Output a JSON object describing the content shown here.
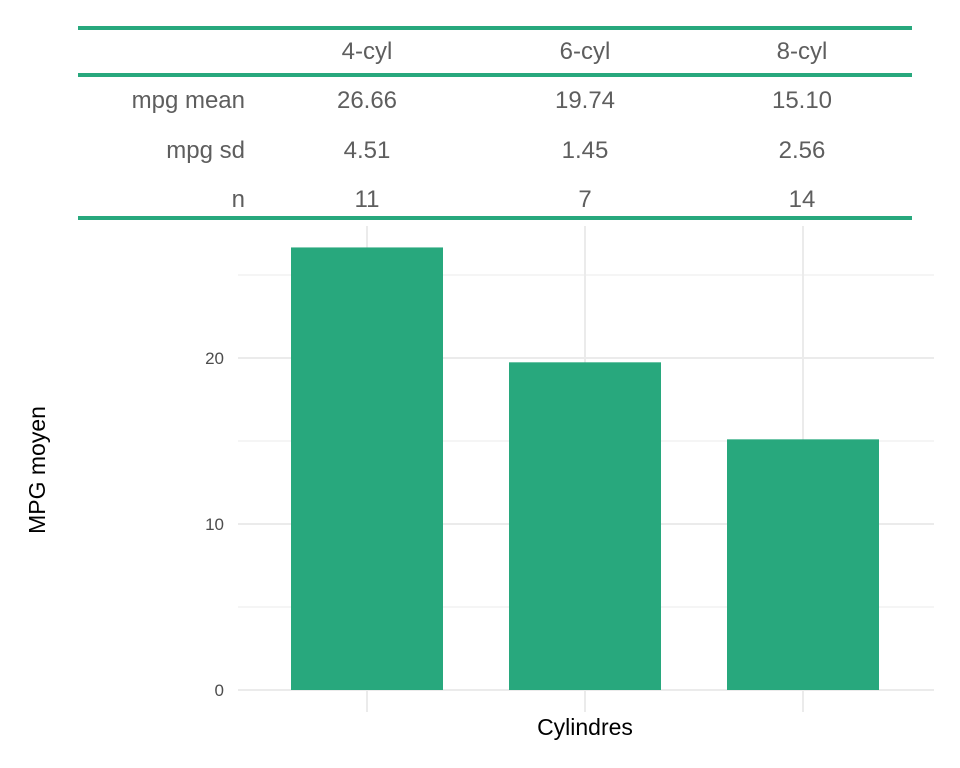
{
  "table": {
    "columns": [
      "4-cyl",
      "6-cyl",
      "8-cyl"
    ],
    "rows": [
      {
        "label": "mpg mean",
        "values": [
          "26.66",
          "19.74",
          "15.10"
        ]
      },
      {
        "label": "mpg sd",
        "values": [
          "4.51",
          "1.45",
          "2.56"
        ]
      },
      {
        "label": "n",
        "values": [
          "11",
          "7",
          "14"
        ]
      }
    ]
  },
  "chart_data": {
    "type": "bar",
    "categories": [
      "4-cyl",
      "6-cyl",
      "8-cyl"
    ],
    "values": [
      26.66,
      19.74,
      15.1
    ],
    "xlabel": "Cylindres",
    "ylabel": "MPG moyen",
    "ylim": [
      0,
      28
    ],
    "yticks": [
      0,
      10,
      20
    ],
    "grid": true,
    "show_x_tick_labels": false,
    "bar_color": "#28a87d",
    "grid_color": "#ebebeb"
  }
}
